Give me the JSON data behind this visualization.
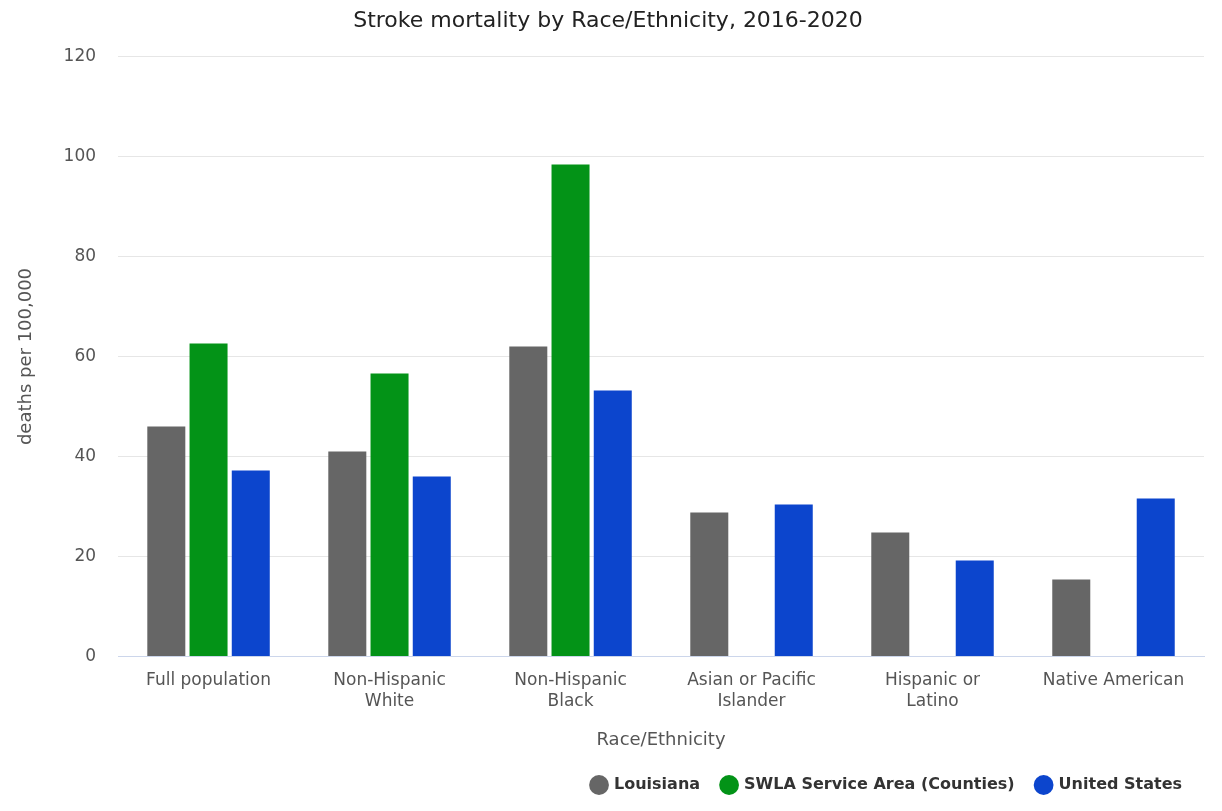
{
  "chart_data": {
    "type": "bar",
    "title": "Stroke mortality by Race/Ethnicity, 2016-2020",
    "xlabel": "Race/Ethnicity",
    "ylabel": "deaths per 100,000",
    "categories": [
      "Full population",
      "Non-Hispanic White",
      "Non-Hispanic Black",
      "Asian or Pacific Islander",
      "Hispanic or Latino",
      "Native American"
    ],
    "series": [
      {
        "name": "Louisiana",
        "color": "#666666",
        "values": [
          46,
          41,
          62,
          28.8,
          24.8,
          15.4
        ]
      },
      {
        "name": "SWLA Service Area (Counties)",
        "color": "#039317",
        "values": [
          62.6,
          56.6,
          98.4,
          null,
          null,
          null
        ]
      },
      {
        "name": "United States",
        "color": "#0c45cd",
        "values": [
          37.2,
          36,
          53.2,
          30.4,
          19.2,
          31.6
        ]
      }
    ],
    "ylim": [
      0,
      120
    ],
    "yticks": [
      0,
      20,
      40,
      60,
      80,
      100,
      120
    ],
    "grid": "y",
    "legend": "bottom right"
  }
}
